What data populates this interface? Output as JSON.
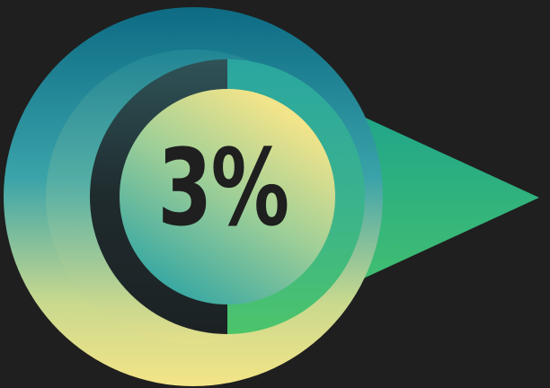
{
  "badge": {
    "percent_text": "3%",
    "progress_fraction": 0.03
  },
  "colors": {
    "background": "#1f1f1f",
    "teal_dark": "#0f6c86",
    "teal_mid": "#3aa6a8",
    "yellow_light": "#f2e48a",
    "green": "#3cc16e",
    "ring_track_dark": "#1b2426",
    "text": "#1e1f1e"
  }
}
